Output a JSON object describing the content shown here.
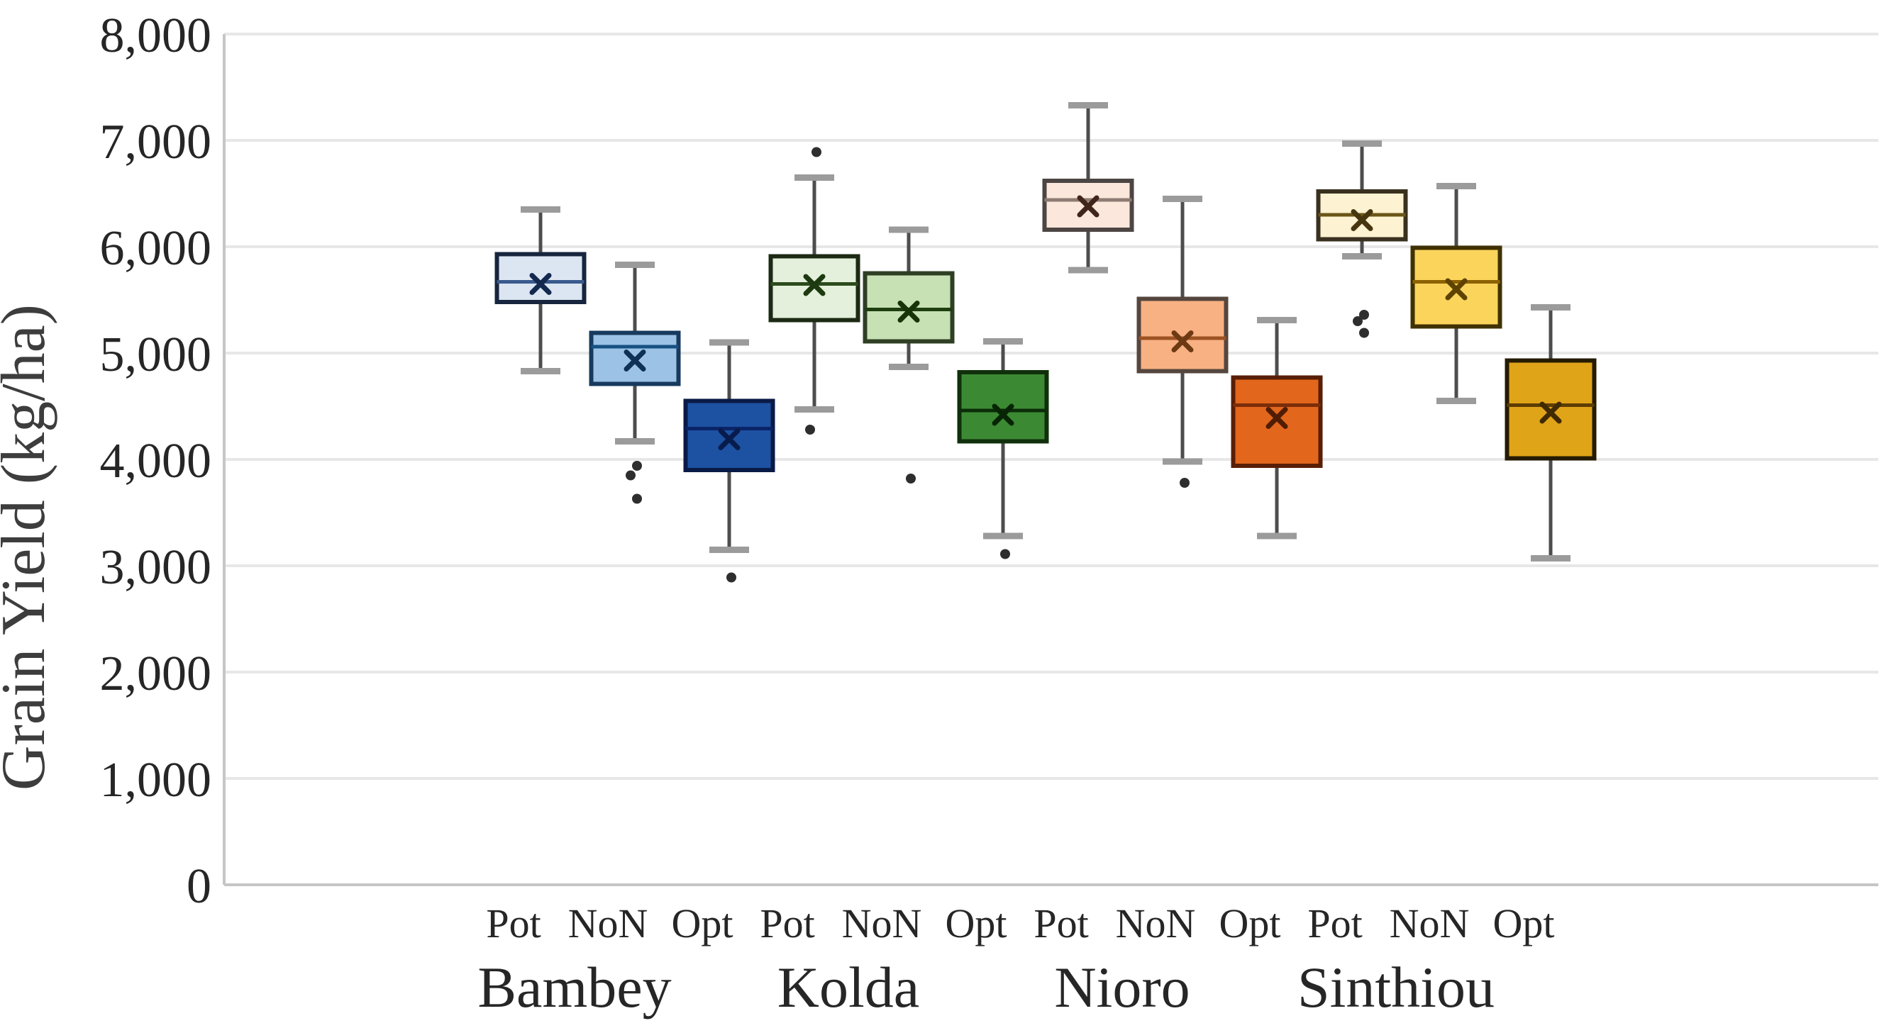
{
  "chart_data": {
    "type": "boxplot",
    "title": "",
    "xlabel": "",
    "ylabel": "Grain Yield (kg/ha)",
    "ylim": [
      0,
      8000
    ],
    "ytick_interval": 1000,
    "grid": true,
    "legend": "none",
    "yticks": [
      {
        "value": 0,
        "label": "0"
      },
      {
        "value": 1000,
        "label": "1,000"
      },
      {
        "value": 2000,
        "label": "2,000"
      },
      {
        "value": 3000,
        "label": "3,000"
      },
      {
        "value": 4000,
        "label": "4,000"
      },
      {
        "value": 5000,
        "label": "5,000"
      },
      {
        "value": 6000,
        "label": "6,000"
      },
      {
        "value": 7000,
        "label": "7,000"
      },
      {
        "value": 8000,
        "label": "8,000"
      }
    ],
    "treatment_labels": [
      "Pot",
      "NoN",
      "Opt"
    ],
    "groups": [
      {
        "label": "Bambey",
        "boxes": [
          {
            "treatment": "Pot",
            "fill": "#dce6f2",
            "border": "#17253e",
            "median_color": "#3a5a8c",
            "mean_color": "#13294f",
            "whislo": 4830,
            "q1": 5480,
            "med": 5670,
            "q3": 5930,
            "whishi": 6350,
            "mean": 5650,
            "outliers": []
          },
          {
            "treatment": "NoN",
            "fill": "#9cc3e6",
            "border": "#173a5e",
            "median_color": "#175083",
            "mean_color": "#0f3057",
            "whislo": 4170,
            "q1": 4710,
            "med": 5060,
            "q3": 5190,
            "whishi": 5830,
            "mean": 4930,
            "outliers": [
              3940,
              3850,
              3630
            ]
          },
          {
            "treatment": "Opt",
            "fill": "#1d51a2",
            "border": "#0a1a47",
            "median_color": "#0a2468",
            "mean_color": "#071c4d",
            "whislo": 3150,
            "q1": 3900,
            "med": 4290,
            "q3": 4550,
            "whishi": 5100,
            "mean": 4190,
            "outliers": [
              2890
            ]
          }
        ]
      },
      {
        "label": "Kolda",
        "boxes": [
          {
            "treatment": "Pot",
            "fill": "#e4f0dc",
            "border": "#1c2a14",
            "median_color": "#2c4b1d",
            "mean_color": "#1d3a10",
            "whislo": 4470,
            "q1": 5310,
            "med": 5650,
            "q3": 5910,
            "whishi": 6650,
            "mean": 5640,
            "outliers": [
              6890,
              4280
            ]
          },
          {
            "treatment": "NoN",
            "fill": "#c7e1b5",
            "border": "#2f3f24",
            "median_color": "#1e3e10",
            "mean_color": "#163408",
            "whislo": 4870,
            "q1": 5110,
            "med": 5410,
            "q3": 5750,
            "whishi": 6160,
            "mean": 5390,
            "outliers": [
              3820
            ]
          },
          {
            "treatment": "Opt",
            "fill": "#3b8a33",
            "border": "#0f300b",
            "median_color": "#0b2d08",
            "mean_color": "#072505",
            "whislo": 3280,
            "q1": 4170,
            "med": 4460,
            "q3": 4820,
            "whishi": 5110,
            "mean": 4420,
            "outliers": [
              3110
            ]
          }
        ]
      },
      {
        "label": "Nioro",
        "boxes": [
          {
            "treatment": "Pot",
            "fill": "#fbe7db",
            "border": "#4c4543",
            "median_color": "#8d7b74",
            "mean_color": "#40261a",
            "whislo": 5780,
            "q1": 6160,
            "med": 6440,
            "q3": 6620,
            "whishi": 7330,
            "mean": 6380,
            "outliers": []
          },
          {
            "treatment": "NoN",
            "fill": "#f8b183",
            "border": "#55463e",
            "median_color": "#9c5222",
            "mean_color": "#6e3a14",
            "whislo": 3980,
            "q1": 4830,
            "med": 5140,
            "q3": 5510,
            "whishi": 6450,
            "mean": 5110,
            "outliers": [
              3780
            ]
          },
          {
            "treatment": "Opt",
            "fill": "#e2661c",
            "border": "#591e06",
            "median_color": "#7c2d08",
            "mean_color": "#511c04",
            "whislo": 3280,
            "q1": 3940,
            "med": 4510,
            "q3": 4770,
            "whishi": 5310,
            "mean": 4390,
            "outliers": []
          }
        ]
      },
      {
        "label": "Sinthiou",
        "boxes": [
          {
            "treatment": "Pot",
            "fill": "#fdf2d1",
            "border": "#39301f",
            "median_color": "#6b5518",
            "mean_color": "#473510",
            "whislo": 5910,
            "q1": 6070,
            "med": 6300,
            "q3": 6520,
            "whishi": 6970,
            "mean": 6250,
            "outliers": [
              5360,
              5300,
              5190
            ]
          },
          {
            "treatment": "NoN",
            "fill": "#fbd45c",
            "border": "#403102",
            "median_color": "#8d6202",
            "mean_color": "#5d4201",
            "whislo": 4550,
            "q1": 5250,
            "med": 5670,
            "q3": 5990,
            "whishi": 6570,
            "mean": 5600,
            "outliers": []
          },
          {
            "treatment": "Opt",
            "fill": "#e0a418",
            "border": "#251b02",
            "median_color": "#5e3d02",
            "mean_color": "#402a01",
            "whislo": 3070,
            "q1": 4010,
            "med": 4510,
            "q3": 4930,
            "whishi": 5430,
            "mean": 4440,
            "outliers": []
          }
        ]
      }
    ],
    "styles": {
      "grid_color": "#e7e7e7",
      "axis_color": "#c6c6c6",
      "whisker_color": "#4d4d4d",
      "cap_color": "#9b9b9b",
      "outlier_color": "#2e2e2e",
      "text_color": "#262626",
      "axis_title_color": "#3d3d3d"
    }
  }
}
